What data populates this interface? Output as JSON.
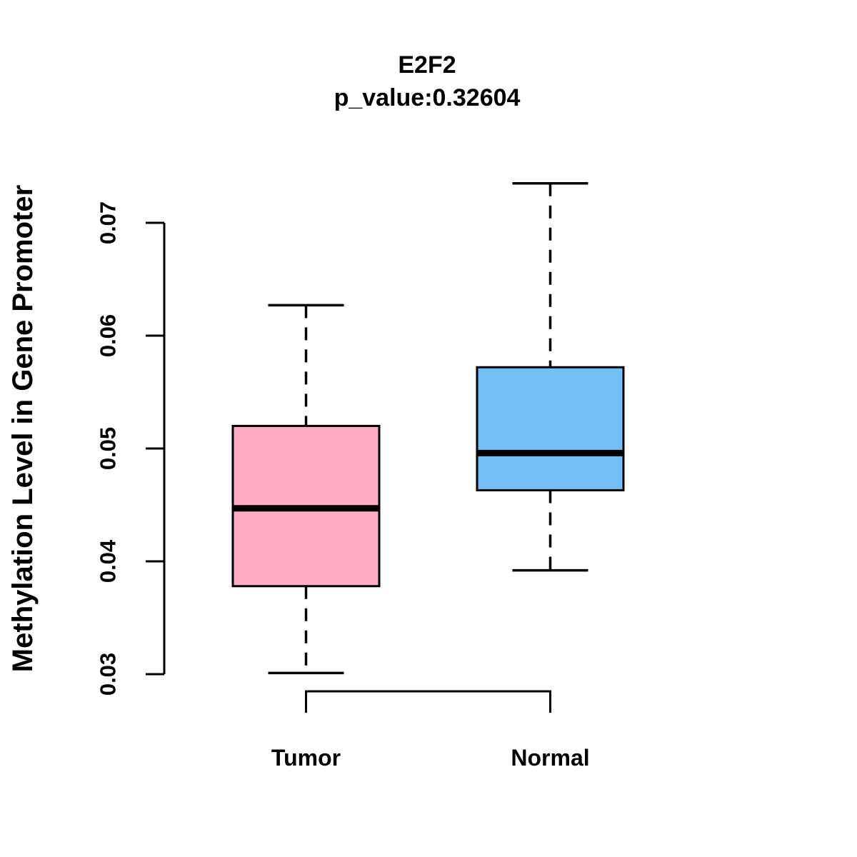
{
  "title": {
    "gene": "E2F2",
    "p_value_line": "p_value:0.32604"
  },
  "y_axis": {
    "label": "Methylation Level in Gene Promoter",
    "tick_labels": [
      "0.03",
      "0.04",
      "0.05",
      "0.06",
      "0.07"
    ],
    "tick_values": [
      0.03,
      0.04,
      0.05,
      0.06,
      0.07
    ]
  },
  "x_axis": {
    "categories": [
      "Tumor",
      "Normal"
    ]
  },
  "chart_data": {
    "type": "boxplot",
    "title": "E2F2",
    "subtitle": "p_value:0.32604",
    "ylabel": "Methylation Level in Gene Promoter",
    "xlabel": "",
    "ylim": [
      0.03,
      0.0735
    ],
    "yticks": [
      0.03,
      0.04,
      0.05,
      0.06,
      0.07
    ],
    "grid": false,
    "legend_position": "none",
    "categories": [
      "Tumor",
      "Normal"
    ],
    "series": [
      {
        "name": "Tumor",
        "color": "#FFAEC1",
        "min": 0.0301,
        "q1": 0.0378,
        "median": 0.0447,
        "q3": 0.052,
        "max": 0.0627,
        "outliers": []
      },
      {
        "name": "Normal",
        "color": "#74BFF7",
        "min": 0.0392,
        "q1": 0.0463,
        "median": 0.0496,
        "q3": 0.0572,
        "max": 0.0735,
        "outliers": []
      }
    ]
  },
  "colors": {
    "box_border": "#000000",
    "axis": "#000000",
    "background": "#FFFFFF"
  }
}
